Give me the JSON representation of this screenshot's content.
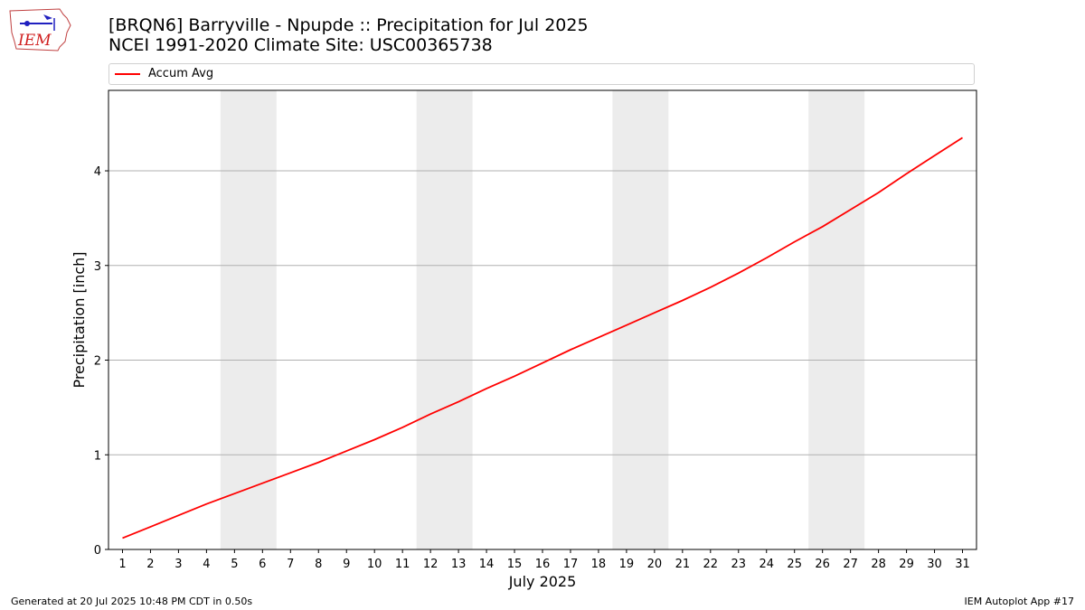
{
  "logo": {
    "text": "IEM"
  },
  "header": {
    "title_line1": "[BRQN6] Barryville - Npupde :: Precipitation for Jul 2025",
    "title_line2": "NCEI 1991-2020 Climate Site: USC00365738"
  },
  "footer": {
    "generated": "Generated at 20 Jul 2025 10:48 PM CDT in 0.50s",
    "app": "IEM Autoplot App #17"
  },
  "colors": {
    "accent": "#ff0000",
    "weekend_band": "#ececec",
    "grid": "#b0b0b0"
  },
  "chart_data": {
    "type": "line",
    "title": "[BRQN6] Barryville - Npupde :: Precipitation for Jul 2025",
    "subtitle": "NCEI 1991-2020 Climate Site: USC00365738",
    "xlabel": "July 2025",
    "ylabel": "Precipitation [inch]",
    "x": [
      1,
      2,
      3,
      4,
      5,
      6,
      7,
      8,
      9,
      10,
      11,
      12,
      13,
      14,
      15,
      16,
      17,
      18,
      19,
      20,
      21,
      22,
      23,
      24,
      25,
      26,
      27,
      28,
      29,
      30,
      31
    ],
    "xlim": [
      0.5,
      31.5
    ],
    "ylim": [
      0,
      4.85
    ],
    "yticks": [
      0,
      1,
      2,
      3,
      4
    ],
    "grid": "horizontal",
    "legend_position": "top",
    "shaded_days": [
      [
        5,
        6
      ],
      [
        12,
        13
      ],
      [
        19,
        20
      ],
      [
        26,
        27
      ]
    ],
    "series": [
      {
        "name": "Accum Avg",
        "color": "#ff0000",
        "values": [
          0.12,
          0.24,
          0.36,
          0.48,
          0.59,
          0.7,
          0.81,
          0.92,
          1.04,
          1.16,
          1.29,
          1.43,
          1.56,
          1.7,
          1.83,
          1.97,
          2.11,
          2.24,
          2.37,
          2.5,
          2.63,
          2.77,
          2.92,
          3.08,
          3.25,
          3.41,
          3.59,
          3.77,
          3.97,
          4.16,
          4.35
        ]
      }
    ]
  }
}
